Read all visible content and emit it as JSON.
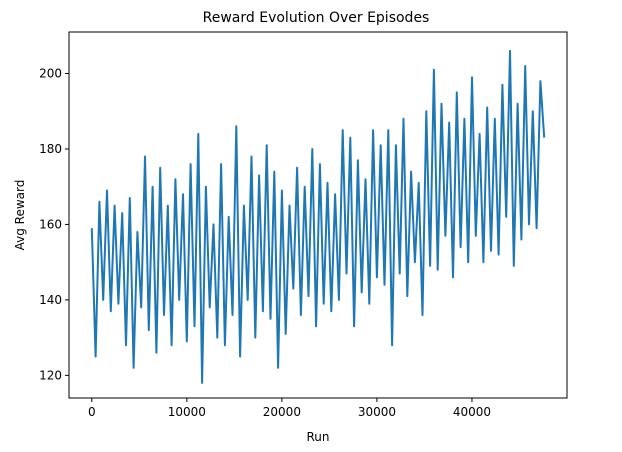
{
  "chart_data": {
    "type": "line",
    "title": "Reward Evolution Over Episodes",
    "xlabel": "Run",
    "ylabel": "Avg Reward",
    "xlim": [
      -2400,
      50000
    ],
    "ylim": [
      114,
      211
    ],
    "x_ticks": [
      0,
      10000,
      20000,
      30000,
      40000
    ],
    "y_ticks": [
      120,
      140,
      160,
      180,
      200
    ],
    "grid": false,
    "legend": "none",
    "series": [
      {
        "color": "#1f77b4",
        "x": [
          0,
          400,
          800,
          1200,
          1600,
          2000,
          2400,
          2800,
          3200,
          3600,
          4000,
          4400,
          4800,
          5200,
          5600,
          6000,
          6400,
          6800,
          7200,
          7600,
          8000,
          8400,
          8800,
          9200,
          9600,
          10000,
          10400,
          10800,
          11200,
          11600,
          12000,
          12400,
          12800,
          13200,
          13600,
          14000,
          14400,
          14800,
          15200,
          15600,
          16000,
          16400,
          16800,
          17200,
          17600,
          18000,
          18400,
          18800,
          19200,
          19600,
          20000,
          20400,
          20800,
          21200,
          21600,
          22000,
          22400,
          22800,
          23200,
          23600,
          24000,
          24400,
          24800,
          25200,
          25600,
          26000,
          26400,
          26800,
          27200,
          27600,
          28000,
          28400,
          28800,
          29200,
          29600,
          30000,
          30400,
          30800,
          31200,
          31600,
          32000,
          32400,
          32800,
          33200,
          33600,
          34000,
          34400,
          34800,
          35200,
          35600,
          36000,
          36400,
          36800,
          37200,
          37600,
          38000,
          38400,
          38800,
          39200,
          39600,
          40000,
          40400,
          40800,
          41200,
          41600,
          42000,
          42400,
          42800,
          43200,
          43600,
          44000,
          44400,
          44800,
          45200,
          45600,
          46000,
          46400,
          46800,
          47200,
          47600
        ],
        "values": [
          159,
          125,
          166,
          140,
          169,
          137,
          165,
          139,
          163,
          128,
          167,
          122,
          158,
          138,
          178,
          132,
          170,
          126,
          175,
          136,
          165,
          128,
          172,
          140,
          168,
          129,
          176,
          133,
          184,
          118,
          170,
          138,
          160,
          130,
          176,
          128,
          162,
          136,
          186,
          125,
          165,
          140,
          178,
          130,
          173,
          137,
          181,
          135,
          174,
          122,
          169,
          131,
          165,
          143,
          175,
          136,
          170,
          141,
          180,
          133,
          176,
          139,
          171,
          137,
          168,
          140,
          185,
          147,
          183,
          133,
          177,
          142,
          172,
          139,
          185,
          146,
          181,
          144,
          185,
          128,
          181,
          147,
          188,
          141,
          174,
          150,
          171,
          136,
          190,
          149,
          201,
          148,
          192,
          157,
          187,
          146,
          195,
          154,
          188,
          150,
          199,
          157,
          184,
          150,
          191,
          153,
          188,
          152,
          197,
          162,
          206,
          149,
          192,
          156,
          202,
          160,
          190,
          159,
          198,
          183
        ]
      }
    ]
  }
}
